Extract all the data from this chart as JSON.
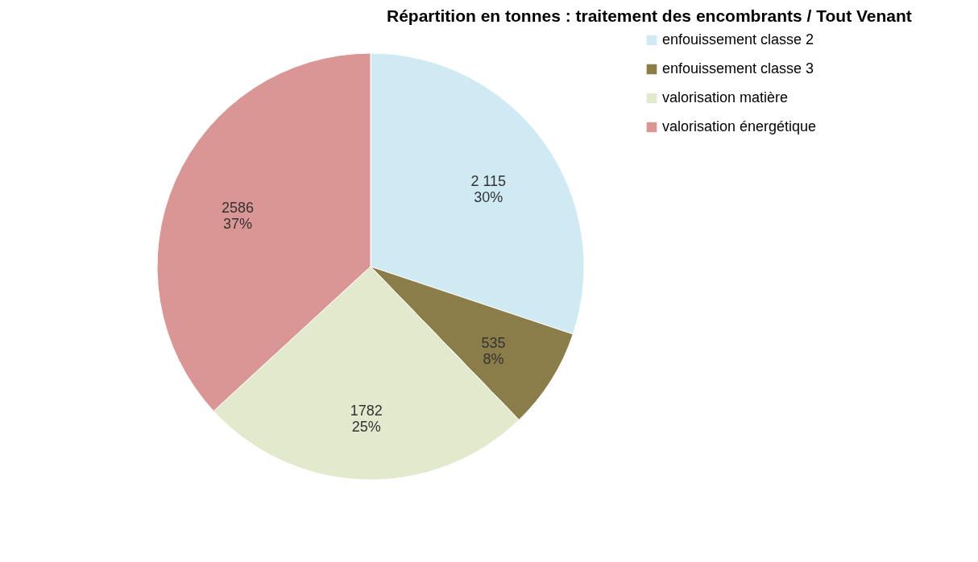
{
  "chart_data": {
    "type": "pie",
    "title": "Répartition en tonnes : traitement des encombrants / Tout Venant",
    "categories": [
      "enfouissement classe 2",
      "enfouissement classe 3",
      "valorisation matière",
      "valorisation énergétique"
    ],
    "values": [
      2115,
      535,
      1782,
      2586
    ],
    "colors": [
      "#cfeaf3",
      "#8b7d4a",
      "#e2e9cc",
      "#d99694"
    ],
    "value_labels": [
      "2 115\n30%",
      "535\n8%",
      "1782\n25%",
      "2586\n37%"
    ],
    "legend": "right"
  }
}
